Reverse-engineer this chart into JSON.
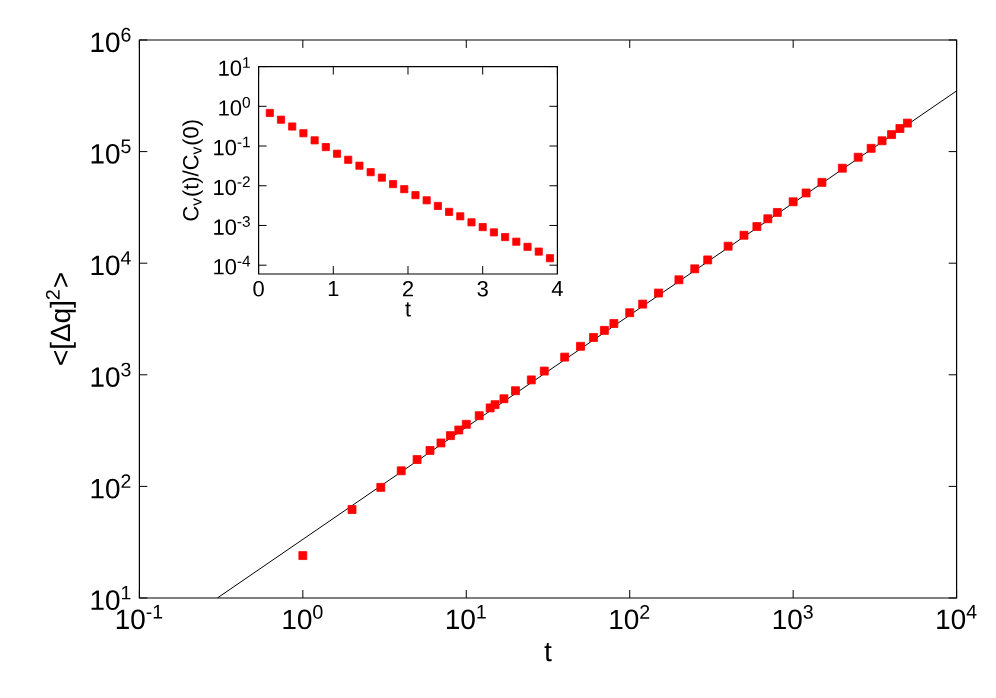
{
  "chart_data": [
    {
      "type": "scatter",
      "xlabel": "t",
      "ylabel": "<[Δq]$^{2}$>",
      "log": "xy",
      "grid": false,
      "xlim": [
        0.1,
        10000
      ],
      "ylim": [
        10,
        1000000
      ],
      "xticks": [
        {
          "value": 0.1,
          "label": "10$^{-1}$"
        },
        {
          "value": 1,
          "label": "10$^{0}$"
        },
        {
          "value": 10,
          "label": "10$^{1}$"
        },
        {
          "value": 100,
          "label": "10$^{2}$"
        },
        {
          "value": 1000,
          "label": "10$^{3}$"
        },
        {
          "value": 10000,
          "label": "10$^{4}$"
        }
      ],
      "yticks": [
        {
          "value": 10,
          "label": "10$^{1}$"
        },
        {
          "value": 100,
          "label": "10$^{2}$"
        },
        {
          "value": 1000,
          "label": "10$^{3}$"
        },
        {
          "value": 10000,
          "label": "10$^{4}$"
        },
        {
          "value": 100000,
          "label": "10$^{5}$"
        },
        {
          "value": 1000000,
          "label": "10$^{6}$"
        }
      ],
      "series": [
        {
          "marker": "square",
          "color": "#ff0000",
          "x": [
            1,
            2,
            3,
            4,
            5,
            6,
            7,
            8,
            9,
            10,
            12,
            14,
            15,
            17,
            20,
            25,
            30,
            40,
            50,
            60,
            70,
            80,
            100,
            120,
            150,
            200,
            250,
            300,
            400,
            500,
            600,
            700,
            800,
            1000,
            1200,
            1500,
            2000,
            2500,
            3000,
            3500,
            4000,
            4500,
            5000
          ],
          "values": [
            24,
            62,
            98,
            138,
            174,
            210,
            245,
            285,
            320,
            360,
            430,
            505,
            540,
            610,
            720,
            900,
            1080,
            1440,
            1800,
            2160,
            2500,
            2880,
            3600,
            4300,
            5400,
            7100,
            8900,
            10700,
            14200,
            17800,
            21300,
            25000,
            28500,
            35500,
            42600,
            53000,
            71000,
            89000,
            107000,
            125000,
            142000,
            161000,
            180000
          ]
        },
        {
          "type": "line",
          "marker": "none",
          "line_style": "solid",
          "color": "#000000",
          "x": [
            0.3,
            10000
          ],
          "values": [
            10,
            350000
          ]
        }
      ]
    },
    {
      "type": "scatter",
      "xlabel": "t",
      "ylabel": "C$_{v}$(t)/C$_{v}$(0)",
      "log": "y",
      "grid": false,
      "xlim": [
        0,
        4
      ],
      "ylim": [
        6e-05,
        10
      ],
      "xticks": [
        0,
        1,
        2,
        3,
        4
      ],
      "yticks": [
        {
          "value": 0.0001,
          "label": "10$^{-4}$"
        },
        {
          "value": 0.001,
          "label": "10$^{-3}$"
        },
        {
          "value": 0.01,
          "label": "10$^{-2}$"
        },
        {
          "value": 0.1,
          "label": "10$^{-1}$"
        },
        {
          "value": 1,
          "label": "10$^{0}$"
        },
        {
          "value": 10,
          "label": "10$^{1}$"
        }
      ],
      "series": [
        {
          "marker": "square",
          "color": "#ff0000",
          "x": [
            0.15,
            0.3,
            0.45,
            0.6,
            0.75,
            0.9,
            1.05,
            1.2,
            1.35,
            1.5,
            1.65,
            1.8,
            1.95,
            2.1,
            2.25,
            2.4,
            2.55,
            2.7,
            2.85,
            3.0,
            3.15,
            3.3,
            3.45,
            3.6,
            3.75,
            3.9
          ],
          "values": [
            0.68,
            0.46,
            0.31,
            0.21,
            0.139,
            0.094,
            0.064,
            0.045,
            0.032,
            0.022,
            0.016,
            0.011,
            0.0082,
            0.0058,
            0.0043,
            0.0031,
            0.0022,
            0.0017,
            0.0012,
            0.00091,
            0.00067,
            0.00051,
            0.00039,
            0.00029,
            0.00022,
            0.00015
          ]
        }
      ]
    }
  ]
}
